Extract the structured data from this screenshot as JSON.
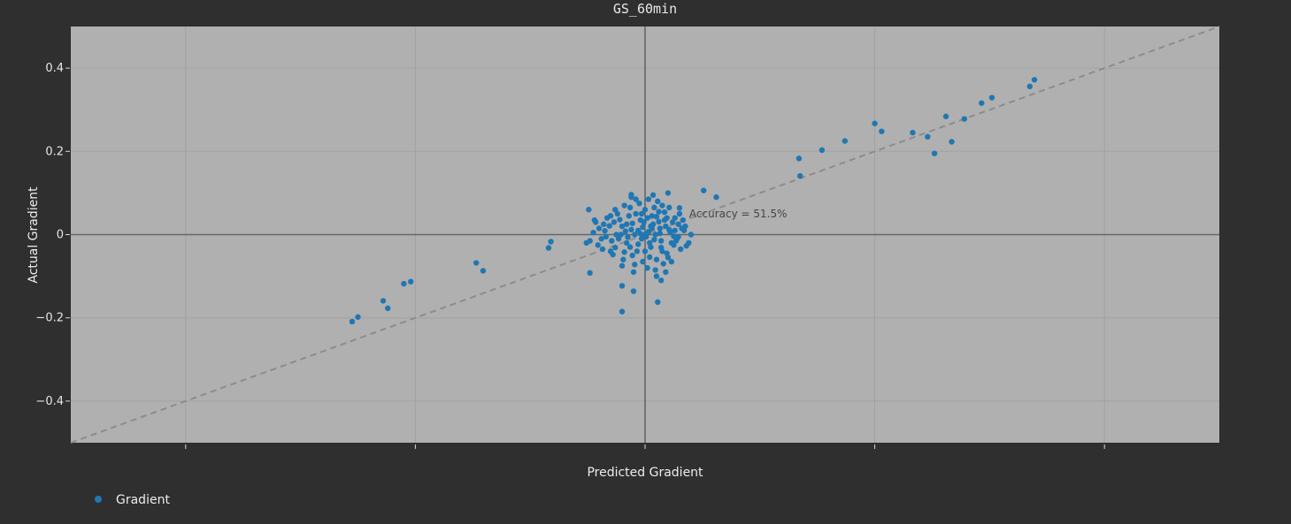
{
  "chart_data": {
    "type": "scatter",
    "title": "GS_60min",
    "xlabel": "Predicted Gradient",
    "ylabel": "Actual Gradient",
    "xlim": [
      -0.5,
      0.5
    ],
    "ylim": [
      -0.5,
      0.5
    ],
    "x_tick_values": [
      -0.4,
      -0.2,
      0,
      0.2,
      0.4
    ],
    "x_tick_labels": [
      "",
      "",
      "",
      "",
      ""
    ],
    "y_tick_values": [
      -0.4,
      -0.2,
      0,
      0.2,
      0.4
    ],
    "y_tick_labels": [
      "−0.4",
      "−0.2",
      "0",
      "0.2",
      "0.4"
    ],
    "grid": true,
    "reference_line": "y = x",
    "annotation": {
      "text": "Accuracy = 51.5%",
      "x": 0.05,
      "y": 0.05
    },
    "legend_position": "bottom-left",
    "colors": {
      "series": "#1f77b4",
      "plot_bg": "#b0b0b0",
      "page_bg": "#2f2f2f",
      "diag": "#8c8c8c"
    },
    "series": [
      {
        "name": "Gradient",
        "points": [
          [
            -0.255,
            -0.209
          ],
          [
            -0.25,
            -0.198
          ],
          [
            -0.228,
            -0.159
          ],
          [
            -0.224,
            -0.177
          ],
          [
            -0.21,
            -0.118
          ],
          [
            -0.204,
            -0.113
          ],
          [
            -0.147,
            -0.068
          ],
          [
            -0.141,
            -0.087
          ],
          [
            -0.084,
            -0.032
          ],
          [
            -0.082,
            -0.017
          ],
          [
            0.135,
            0.141
          ],
          [
            0.134,
            0.183
          ],
          [
            0.154,
            0.203
          ],
          [
            0.174,
            0.225
          ],
          [
            0.2,
            0.267
          ],
          [
            0.206,
            0.248
          ],
          [
            0.233,
            0.245
          ],
          [
            0.246,
            0.235
          ],
          [
            0.252,
            0.195
          ],
          [
            0.262,
            0.284
          ],
          [
            0.267,
            0.223
          ],
          [
            0.278,
            0.278
          ],
          [
            0.293,
            0.316
          ],
          [
            0.302,
            0.329
          ],
          [
            0.335,
            0.356
          ],
          [
            0.339,
            0.372
          ],
          [
            0.051,
            0.106
          ],
          [
            0.062,
            0.09
          ],
          [
            -0.049,
            0.06
          ],
          [
            -0.048,
            -0.092
          ],
          [
            -0.02,
            -0.185
          ],
          [
            0.011,
            -0.162
          ],
          [
            0.036,
            -0.027
          ],
          [
            -0.051,
            -0.02
          ],
          [
            -0.02,
            -0.123
          ],
          [
            -0.01,
            -0.136
          ],
          [
            0.014,
            -0.11
          ],
          [
            0.02,
            0.1
          ],
          [
            -0.012,
            0.096
          ],
          [
            0.03,
            0.064
          ],
          [
            -0.044,
            0.035
          ],
          [
            0.028,
            -0.009
          ],
          [
            0.003,
            0.007
          ],
          [
            -0.018,
            -0.042
          ],
          [
            -0.029,
            -0.015
          ],
          [
            0.01,
            0.043
          ],
          [
            0.021,
            0.012
          ],
          [
            -0.006,
            -0.023
          ],
          [
            0.014,
            -0.031
          ],
          [
            -0.035,
            0.009
          ],
          [
            0.025,
            -0.004
          ],
          [
            -0.011,
            0.027
          ],
          [
            0.004,
            -0.054
          ],
          [
            -0.022,
            0.036
          ],
          [
            0.017,
            0.054
          ],
          [
            -0.002,
            0.018
          ],
          [
            0.008,
            -0.012
          ],
          [
            -0.015,
            -0.006
          ],
          [
            0.029,
            0.025
          ],
          [
            -0.026,
            -0.031
          ],
          [
            0.0,
            0.06
          ],
          [
            -0.009,
            -0.072
          ],
          [
            0.012,
            0.031
          ],
          [
            -0.031,
            0.021
          ],
          [
            0.019,
            -0.045
          ],
          [
            -0.004,
            0.002
          ],
          [
            0.006,
            0.015
          ],
          [
            -0.017,
            0.008
          ],
          [
            0.023,
            -0.02
          ],
          [
            -0.007,
            -0.04
          ],
          [
            0.015,
            0.07
          ],
          [
            -0.024,
            0.05
          ],
          [
            0.009,
            -0.085
          ],
          [
            -0.013,
            0.065
          ],
          [
            0.031,
            -0.035
          ],
          [
            -0.038,
            -0.01
          ],
          [
            0.002,
            0.04
          ],
          [
            -0.003,
            -0.01
          ],
          [
            0.013,
            0.003
          ],
          [
            -0.02,
            0.02
          ],
          [
            0.026,
            0.04
          ],
          [
            -0.028,
            -0.048
          ],
          [
            0.005,
            -0.03
          ],
          [
            -0.012,
            0.012
          ],
          [
            0.018,
            0.02
          ],
          [
            -0.033,
            0.04
          ],
          [
            0.01,
            -0.06
          ],
          [
            -0.005,
            0.075
          ],
          [
            0.022,
            0.005
          ],
          [
            -0.016,
            -0.02
          ],
          [
            0.034,
            0.01
          ],
          [
            -0.041,
            -0.025
          ],
          [
            0.001,
            -0.005
          ],
          [
            0.011,
            0.08
          ],
          [
            -0.008,
            0.05
          ],
          [
            0.016,
            -0.07
          ],
          [
            -0.025,
            0.0
          ],
          [
            0.027,
            -0.015
          ],
          [
            -0.001,
            0.03
          ],
          [
            0.007,
            0.025
          ],
          [
            -0.019,
            -0.06
          ],
          [
            0.024,
            0.03
          ],
          [
            -0.01,
            -0.09
          ],
          [
            0.032,
            0.015
          ],
          [
            -0.036,
            0.025
          ],
          [
            0.004,
            -0.02
          ],
          [
            -0.014,
            0.045
          ],
          [
            0.02,
            -0.055
          ],
          [
            -0.023,
            -0.01
          ],
          [
            0.012,
            0.055
          ],
          [
            -0.006,
            0.01
          ],
          [
            0.009,
            0.0
          ],
          [
            -0.03,
            -0.04
          ],
          [
            0.003,
            0.085
          ],
          [
            -0.018,
            0.07
          ],
          [
            0.025,
            -0.025
          ],
          [
            -0.04,
            0.015
          ],
          [
            0.015,
            -0.04
          ],
          [
            -0.002,
            -0.065
          ],
          [
            0.006,
            0.045
          ],
          [
            -0.027,
            0.03
          ],
          [
            0.021,
            0.065
          ],
          [
            -0.011,
            -0.05
          ],
          [
            0.029,
            -0.005
          ],
          [
            -0.034,
            -0.005
          ],
          [
            0.0,
            -0.04
          ],
          [
            0.017,
            0.035
          ],
          [
            -0.021,
            0.0
          ],
          [
            0.01,
            -0.1
          ],
          [
            -0.008,
            0.085
          ],
          [
            0.03,
            0.05
          ],
          [
            -0.045,
            0.005
          ],
          [
            0.005,
            0.02
          ],
          [
            -0.013,
            -0.03
          ],
          [
            0.023,
            -0.065
          ],
          [
            -0.003,
            0.05
          ],
          [
            0.013,
            0.015
          ],
          [
            -0.026,
            0.06
          ],
          [
            0.019,
            0.04
          ],
          [
            -0.009,
            0.0
          ],
          [
            0.035,
            0.02
          ],
          [
            -0.037,
            -0.035
          ],
          [
            0.008,
            0.065
          ],
          [
            -0.016,
            0.025
          ],
          [
            0.002,
            -0.08
          ],
          [
            0.026,
            0.01
          ],
          [
            -0.02,
            -0.075
          ],
          [
            0.014,
            -0.015
          ],
          [
            -0.004,
            0.035
          ],
          [
            -0.043,
            0.03
          ],
          [
            0.038,
            -0.02
          ],
          [
            0.0,
            0.0
          ],
          [
            -0.03,
            0.045
          ],
          [
            0.033,
            0.035
          ],
          [
            -0.012,
            0.09
          ],
          [
            0.018,
            -0.09
          ],
          [
            0.04,
            0.0
          ],
          [
            -0.048,
            -0.015
          ],
          [
            0.007,
            0.095
          ]
        ]
      }
    ]
  }
}
